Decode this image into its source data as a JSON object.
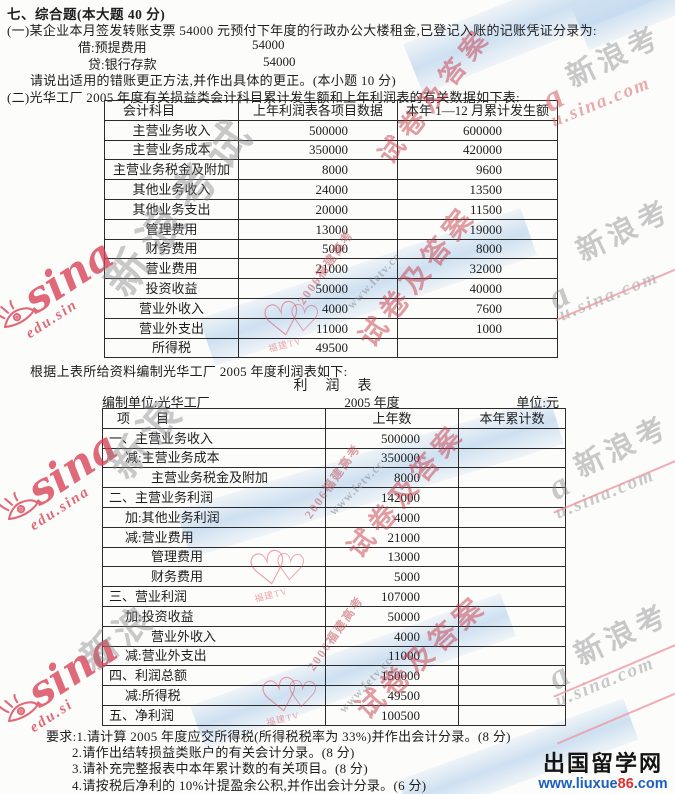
{
  "header": {
    "title": "七、综合题(本大题 40 分)",
    "q1_intro": "(一)某企业本月签发转账支票 54000 元预付下年度的行政办公大楼租金,已登记入账的记账凭证分录为:",
    "entry_debit_label": "借:预提费用",
    "entry_debit_amount": "54000",
    "entry_credit_label": "贷:银行存款",
    "entry_credit_amount": "54000",
    "q1_request": "请说出适用的错账更正方法,并作出具体的更正。(本小题 10 分)",
    "q2_intro": "(二)光华工厂 2005 年度有关损益类会计科目累计发生额和上年利润表的有关数据如下表:"
  },
  "table1": {
    "headers": [
      "会计科目",
      "上年利润表各项目数据",
      "本年 1—12 月累计发生额"
    ],
    "rows": [
      {
        "account": "主营业务收入",
        "prev": "500000",
        "cur": "600000"
      },
      {
        "account": "主营业务成本",
        "prev": "350000",
        "cur": "420000"
      },
      {
        "account": "主营业务税金及附加",
        "prev": "8000",
        "cur": "9600"
      },
      {
        "account": "其他业务收入",
        "prev": "24000",
        "cur": "13500"
      },
      {
        "account": "其他业务支出",
        "prev": "20000",
        "cur": "11500"
      },
      {
        "account": "管理费用",
        "prev": "13000",
        "cur": "19000"
      },
      {
        "account": "财务费用",
        "prev": "5000",
        "cur": "8000"
      },
      {
        "account": "营业费用",
        "prev": "21000",
        "cur": "32000"
      },
      {
        "account": "投资收益",
        "prev": "50000",
        "cur": "40000"
      },
      {
        "account": "营业外收入",
        "prev": "4000",
        "cur": "7600"
      },
      {
        "account": "营业外支出",
        "prev": "11000",
        "cur": "1000"
      },
      {
        "account": "所得税",
        "prev": "49500",
        "cur": ""
      }
    ]
  },
  "between": {
    "note": "根据上表所给资料编制光华工厂 2005 年度利润表如下:",
    "statement_title": "利　润　表",
    "unit_label": "编制单位:光华工厂",
    "period": "2005 年度",
    "unit": "单位:元"
  },
  "table2": {
    "headers": [
      "项　　目",
      "上年数",
      "本年累计数"
    ],
    "rows": [
      {
        "item": "一、主营业务收入",
        "indent": 0,
        "prev": "500000",
        "cur": ""
      },
      {
        "item": "减:主营业务成本",
        "indent": 1,
        "prev": "350000",
        "cur": ""
      },
      {
        "item": "主营业务税金及附加",
        "indent": 2,
        "prev": "8000",
        "cur": ""
      },
      {
        "item": "二、主营业务利润",
        "indent": 0,
        "prev": "142000",
        "cur": ""
      },
      {
        "item": "加:其他业务利润",
        "indent": 1,
        "prev": "4000",
        "cur": ""
      },
      {
        "item": "减:营业费用",
        "indent": 1,
        "prev": "21000",
        "cur": ""
      },
      {
        "item": "管理费用",
        "indent": 2,
        "prev": "13000",
        "cur": ""
      },
      {
        "item": "财务费用",
        "indent": 2,
        "prev": "5000",
        "cur": ""
      },
      {
        "item": "三、营业利润",
        "indent": 0,
        "prev": "107000",
        "cur": ""
      },
      {
        "item": "加:投资收益",
        "indent": 1,
        "prev": "50000",
        "cur": ""
      },
      {
        "item": "营业外收入",
        "indent": 2,
        "prev": "4000",
        "cur": ""
      },
      {
        "item": "减:营业外支出",
        "indent": 1,
        "prev": "11000",
        "cur": ""
      },
      {
        "item": "四、利润总额",
        "indent": 0,
        "prev": "150000",
        "cur": ""
      },
      {
        "item": "减:所得税",
        "indent": 1,
        "prev": "49500",
        "cur": ""
      },
      {
        "item": "五、净利润",
        "indent": 0,
        "prev": "100500",
        "cur": ""
      }
    ]
  },
  "requirements": [
    "要求:1.请计算 2005 年度应交所得税(所得税税率为 33%)并作出会计分录。(8 分)",
    "2.请作出结转损益类账户的有关会计分录。(8 分)",
    "3.请补充完整报表中本年累计数的有关项目。(8 分)",
    "4.请按税后净利的 10%计提盈余公积,并作出会计分录。(6 分)"
  ],
  "watermarks": {
    "sina_script": "sina",
    "edu_sin": "edu.sin",
    "edu_sina": "edu.sina",
    "edu_si": "edu.si",
    "sina_cn_full": "新浪考试",
    "sina_kao": "新浪考",
    "sina_chars": "新浪",
    "a_char": "a",
    "u_sina_url": "u.sina.com",
    "exam_stamp": "试卷及答案",
    "year_stamp": "2006福建高考",
    "fetv_url": "www.fetv.cc",
    "fetv_name": "福建TV"
  },
  "footer_logo": {
    "site_name": "出国留学网",
    "url_blue1": "www.liuxue",
    "url_red": "86",
    "url_blue2": ".com"
  },
  "colors": {
    "paper": "#fcfcfa",
    "ink": "#1d1d1f",
    "border": "#2b2b2b",
    "sina": "#d84055",
    "stamp": "#c63b49",
    "pink": "#eb9aa4",
    "lblue": "#1b5fc1",
    "lred": "#e03030"
  }
}
